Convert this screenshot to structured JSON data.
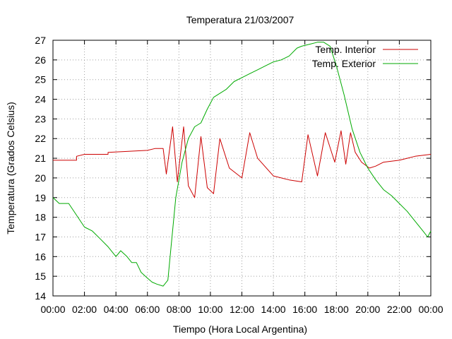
{
  "chart_data": {
    "type": "line",
    "title": "Temperatura 21/03/2007",
    "xlabel": "Tiempo (Hora Local Argentina)",
    "ylabel": "Temperatura (Grados Celsius)",
    "xlim": [
      0,
      24
    ],
    "ylim": [
      14,
      27
    ],
    "x_ticks": [
      "00:00",
      "02:00",
      "04:00",
      "06:00",
      "08:00",
      "10:00",
      "12:00",
      "14:00",
      "16:00",
      "18:00",
      "20:00",
      "22:00",
      "00:00"
    ],
    "y_ticks": [
      14,
      15,
      16,
      17,
      18,
      19,
      20,
      21,
      22,
      23,
      24,
      25,
      26,
      27
    ],
    "grid": true,
    "legend_position": "top-right",
    "colors": {
      "interior": "#cc0000",
      "exterior": "#00aa00"
    },
    "series": [
      {
        "name": "Temp. Interior",
        "x": [
          0,
          1.5,
          1.5,
          2.0,
          3.5,
          3.5,
          6.0,
          6.5,
          7.0,
          7.2,
          7.6,
          7.9,
          8.3,
          8.6,
          9.0,
          9.4,
          9.8,
          10.2,
          10.6,
          11.2,
          12.0,
          12.5,
          13.0,
          14.0,
          15.0,
          15.8,
          16.2,
          16.8,
          17.3,
          17.9,
          18.3,
          18.6,
          18.9,
          19.2,
          19.6,
          20.1,
          20.5,
          21.0,
          22.0,
          22.5,
          23.0,
          24.0
        ],
        "values": [
          20.9,
          20.9,
          21.1,
          21.2,
          21.2,
          21.3,
          21.4,
          21.5,
          21.5,
          20.2,
          22.6,
          19.8,
          22.6,
          19.6,
          19.0,
          22.1,
          19.5,
          19.2,
          22.0,
          20.5,
          20.0,
          22.3,
          21.0,
          20.1,
          19.9,
          19.8,
          22.2,
          20.1,
          22.3,
          20.8,
          22.4,
          20.7,
          22.3,
          21.3,
          20.8,
          20.5,
          20.6,
          20.8,
          20.9,
          21.0,
          21.1,
          21.2
        ]
      },
      {
        "name": "Temp. Exterior",
        "x": [
          0,
          0.4,
          1.0,
          2.0,
          2.5,
          3.0,
          3.5,
          4.0,
          4.3,
          4.7,
          5.0,
          5.3,
          5.6,
          6.0,
          6.3,
          6.6,
          7.0,
          7.3,
          7.5,
          7.8,
          8.2,
          8.6,
          9.0,
          9.4,
          9.8,
          10.2,
          10.6,
          11.0,
          11.5,
          12.0,
          12.5,
          13.0,
          13.5,
          14.0,
          14.5,
          15.0,
          15.5,
          15.8,
          16.3,
          16.8,
          17.2,
          17.6,
          18.0,
          18.5,
          19.0,
          19.5,
          20.0,
          20.5,
          21.0,
          21.5,
          22.0,
          22.5,
          23.0,
          23.5,
          23.8,
          24.0
        ],
        "values": [
          19.0,
          18.7,
          18.7,
          17.5,
          17.3,
          16.9,
          16.5,
          16.0,
          16.3,
          16.0,
          15.7,
          15.7,
          15.2,
          14.9,
          14.7,
          14.6,
          14.5,
          14.8,
          16.5,
          19.0,
          20.8,
          22.0,
          22.6,
          22.8,
          23.5,
          24.1,
          24.3,
          24.5,
          24.9,
          25.1,
          25.3,
          25.5,
          25.7,
          25.9,
          26.0,
          26.2,
          26.6,
          26.7,
          26.8,
          26.9,
          26.9,
          26.7,
          25.7,
          24.2,
          22.5,
          21.3,
          20.5,
          19.9,
          19.4,
          19.1,
          18.7,
          18.3,
          17.8,
          17.3,
          17.0,
          17.3
        ]
      }
    ]
  }
}
